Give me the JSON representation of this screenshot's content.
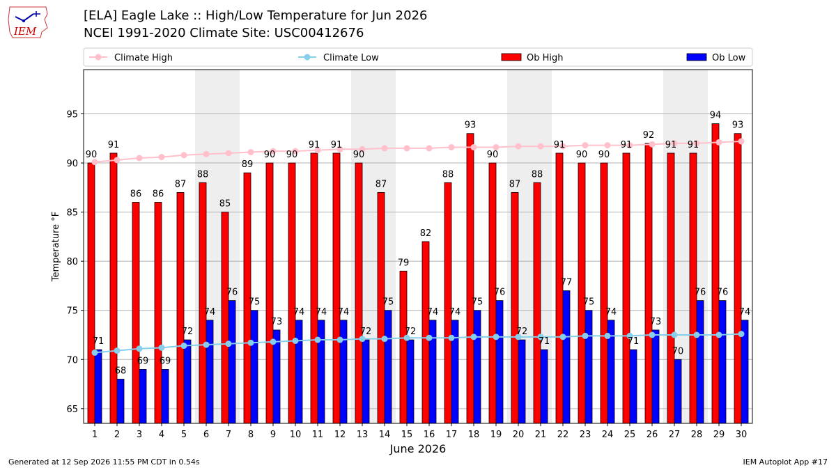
{
  "header": {
    "title_line1": "[ELA] Eagle Lake :: High/Low Temperature for Jun 2026",
    "title_line2": "NCEI 1991-2020 Climate Site: USC00412676",
    "logo_text": "IEM"
  },
  "footer": {
    "generated": "Generated at 12 Sep 2026 11:55 PM CDT in 0.54s",
    "app": "IEM Autoplot App #17"
  },
  "colors": {
    "ob_high": "#ff0000",
    "ob_low": "#0000ff",
    "climate_high": "#ffc0cb",
    "climate_low": "#87ceeb",
    "weekend_shade": "#eeeeee",
    "grid": "#b0b0b0"
  },
  "chart_data": {
    "type": "bar",
    "xlabel": "June 2026",
    "ylabel": "Temperature °F",
    "ylim": [
      63.5,
      99.5
    ],
    "yticks": [
      65,
      70,
      75,
      80,
      85,
      90,
      95
    ],
    "grid": "horizontal",
    "legend": "top",
    "categories": [
      "1",
      "2",
      "3",
      "4",
      "5",
      "6",
      "7",
      "8",
      "9",
      "10",
      "11",
      "12",
      "13",
      "14",
      "15",
      "16",
      "17",
      "18",
      "19",
      "20",
      "21",
      "22",
      "23",
      "24",
      "25",
      "26",
      "27",
      "28",
      "29",
      "30"
    ],
    "shaded_days": [
      6,
      7,
      13,
      14,
      20,
      21,
      27,
      28
    ],
    "series": [
      {
        "name": "Climate High",
        "kind": "line",
        "values": [
          90.1,
          90.3,
          90.5,
          90.6,
          90.8,
          90.9,
          91.0,
          91.1,
          91.2,
          91.2,
          91.3,
          91.4,
          91.4,
          91.5,
          91.5,
          91.5,
          91.6,
          91.6,
          91.6,
          91.7,
          91.7,
          91.7,
          91.8,
          91.8,
          91.8,
          91.9,
          92.0,
          92.0,
          92.1,
          92.2
        ]
      },
      {
        "name": "Climate Low",
        "kind": "line",
        "values": [
          70.7,
          70.9,
          71.1,
          71.2,
          71.4,
          71.5,
          71.6,
          71.7,
          71.8,
          71.9,
          72.0,
          72.0,
          72.1,
          72.1,
          72.2,
          72.2,
          72.2,
          72.3,
          72.3,
          72.3,
          72.3,
          72.3,
          72.4,
          72.4,
          72.4,
          72.5,
          72.5,
          72.5,
          72.5,
          72.6
        ]
      },
      {
        "name": "Ob High",
        "kind": "bar",
        "values": [
          90,
          91,
          86,
          86,
          87,
          88,
          85,
          89,
          90,
          90,
          91,
          91,
          90,
          87,
          79,
          82,
          88,
          93,
          90,
          87,
          88,
          91,
          90,
          90,
          91,
          92,
          91,
          91,
          94,
          93
        ],
        "labels": [
          "90",
          "91",
          "86",
          "86",
          "87",
          "88",
          "85",
          "89",
          "90",
          "90",
          "91",
          "91",
          "90",
          "87",
          "79",
          "82",
          "88",
          "93",
          "90",
          "87",
          "88",
          "91",
          "90",
          "90",
          "91",
          "92",
          "91",
          "91",
          "94",
          "93"
        ]
      },
      {
        "name": "Ob Low",
        "kind": "bar",
        "values": [
          71,
          68,
          69,
          69,
          72,
          74,
          76,
          75,
          73,
          74,
          74,
          74,
          72,
          75,
          72,
          74,
          74,
          75,
          76,
          72,
          71,
          77,
          75,
          74,
          71,
          73,
          70,
          76,
          76,
          74
        ],
        "labels": [
          "71",
          "68",
          "69",
          "69",
          "72",
          "74",
          "76",
          "75",
          "73",
          "74",
          "74",
          "74",
          "72",
          "75",
          "72",
          "74",
          "74",
          "75",
          "76",
          "72",
          "71",
          "77",
          "75",
          "74",
          "71",
          "73",
          "70",
          "76",
          "76",
          "74"
        ]
      }
    ]
  }
}
